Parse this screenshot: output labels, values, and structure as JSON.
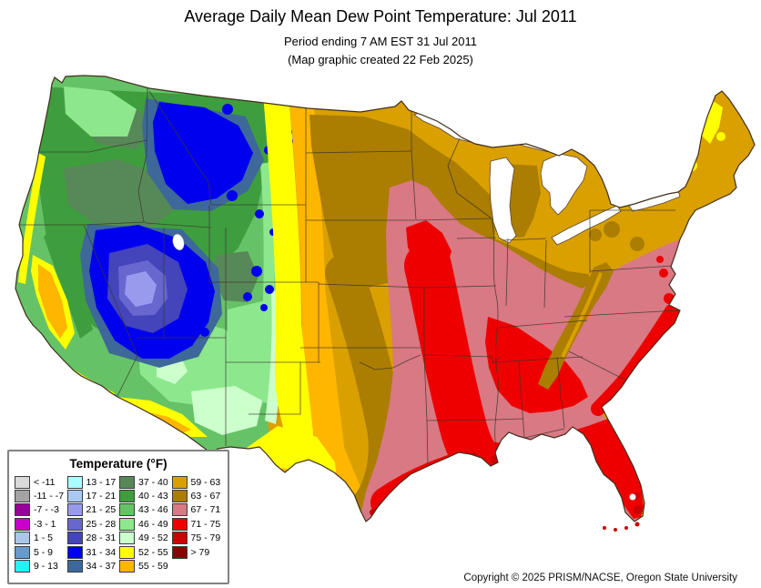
{
  "header": {
    "title": "Average Daily Mean Dew Point Temperature: Jul 2011",
    "subtitle1": "Period ending 7 AM EST 31 Jul 2011",
    "subtitle2": "(Map graphic created 22 Feb 2025)"
  },
  "copyright": "Copyright © 2025 PRISM/NACSE, Oregon State University",
  "legend": {
    "title": "Temperature (°F)",
    "columns": [
      {
        "items": [
          {
            "label": "< -11",
            "color": "#d9d9d9"
          },
          {
            "label": "-11 - -7",
            "color": "#a3a3a3"
          },
          {
            "label": "-7 - -3",
            "color": "#990099"
          },
          {
            "label": "-3 - 1",
            "color": "#cc00cc"
          },
          {
            "label": "1 - 5",
            "color": "#aac6e8"
          },
          {
            "label": "5 - 9",
            "color": "#6699cc"
          },
          {
            "label": "9 - 13",
            "color": "#22f2f2"
          }
        ]
      },
      {
        "items": [
          {
            "label": "13 - 17",
            "color": "#aaffff"
          },
          {
            "label": "17 - 21",
            "color": "#a9c9f1"
          },
          {
            "label": "21 - 25",
            "color": "#9999ee"
          },
          {
            "label": "25 - 28",
            "color": "#6767cf"
          },
          {
            "label": "28 - 31",
            "color": "#4444bb"
          },
          {
            "label": "31 - 34",
            "color": "#0000ee"
          },
          {
            "label": "34 - 37",
            "color": "#3d6899"
          }
        ]
      },
      {
        "items": [
          {
            "label": "37 - 40",
            "color": "#578857"
          },
          {
            "label": "40 - 43",
            "color": "#3e9e3e"
          },
          {
            "label": "43 - 46",
            "color": "#66c266"
          },
          {
            "label": "46 - 49",
            "color": "#8de88d"
          },
          {
            "label": "49 - 52",
            "color": "#ccffcc"
          },
          {
            "label": "52 - 55",
            "color": "#ffff00"
          },
          {
            "label": "55 - 59",
            "color": "#ffb600"
          }
        ]
      },
      {
        "items": [
          {
            "label": "59 - 63",
            "color": "#d9a000"
          },
          {
            "label": "63 - 67",
            "color": "#ab7d00"
          },
          {
            "label": "67 - 71",
            "color": "#d97983"
          },
          {
            "label": "71 - 75",
            "color": "#ee0000"
          },
          {
            "label": "75 - 79",
            "color": "#cc0000"
          },
          {
            "label": "> 79",
            "color": "#8b0000"
          }
        ]
      }
    ]
  }
}
